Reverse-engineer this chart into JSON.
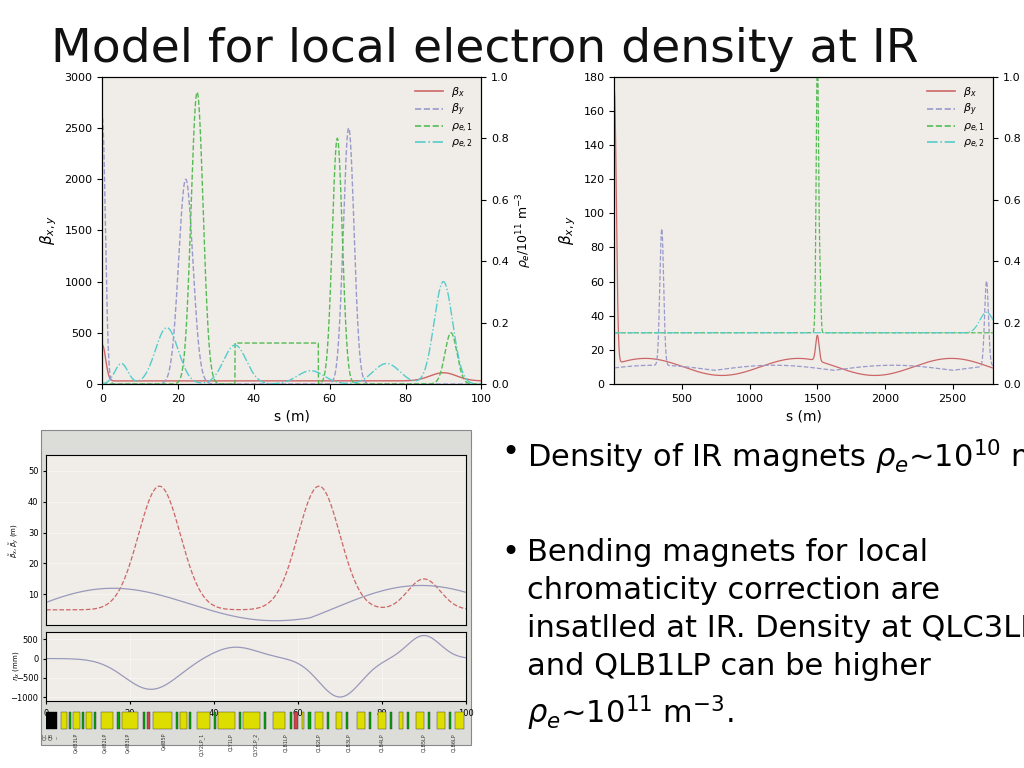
{
  "title": "Model for local electron density at IR",
  "title_fontsize": 34,
  "title_color": "#111111",
  "background_color": "#ffffff",
  "plot1": {
    "xlim": [
      0,
      100
    ],
    "ylim_left": [
      0,
      3000
    ],
    "ylim_right": [
      0,
      1
    ],
    "xlabel": "s (m)",
    "xticks": [
      0,
      20,
      40,
      60,
      80,
      100
    ],
    "yticks_left": [
      0,
      500,
      1000,
      1500,
      2000,
      2500,
      3000
    ],
    "yticks_right": [
      0,
      0.2,
      0.4,
      0.6,
      0.8,
      1
    ]
  },
  "plot2": {
    "xlim": [
      0,
      2800
    ],
    "ylim_left": [
      0,
      180
    ],
    "ylim_right": [
      0,
      1
    ],
    "xlabel": "s (m)",
    "xticks": [
      500,
      1000,
      1500,
      2000,
      2500
    ],
    "yticks_left": [
      0,
      20,
      40,
      60,
      80,
      100,
      120,
      140,
      160,
      180
    ],
    "yticks_right": [
      0,
      0.2,
      0.4,
      0.6,
      0.8,
      1
    ]
  },
  "lattice_bg": "#e8e8e4",
  "bullet_fontsize": 22
}
